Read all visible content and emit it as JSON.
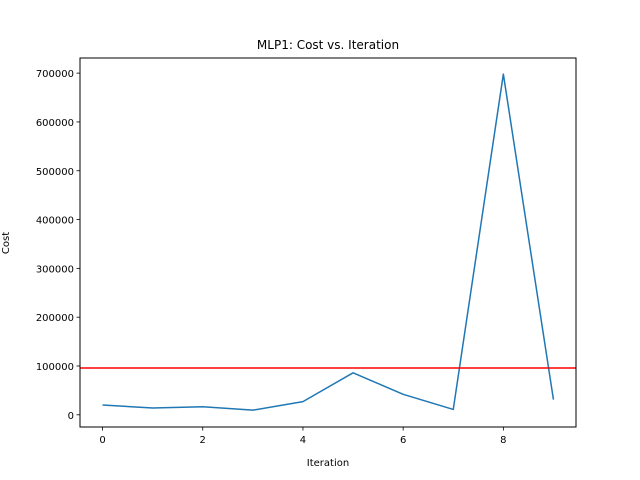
{
  "chart_data": {
    "type": "line",
    "title": "MLP1: Cost vs. Iteration",
    "xlabel": "Iteration",
    "ylabel": "Cost",
    "x": [
      0,
      1,
      2,
      3,
      4,
      5,
      6,
      7,
      8,
      9
    ],
    "series": [
      {
        "values": [
          20000,
          14000,
          16500,
          9500,
          27000,
          86000,
          42000,
          11000,
          698000,
          31000
        ],
        "color": "#1f77b4"
      }
    ],
    "reference_line": {
      "y": 96000,
      "color": "#ff0000"
    },
    "xlim": [
      -0.45,
      9.45
    ],
    "ylim": [
      -25000,
      731000
    ],
    "xticks": [
      0,
      2,
      4,
      6,
      8
    ],
    "xtick_labels": [
      "0",
      "2",
      "4",
      "6",
      "8"
    ],
    "yticks": [
      0,
      100000,
      200000,
      300000,
      400000,
      500000,
      600000,
      700000
    ],
    "ytick_labels": [
      "0",
      "100000",
      "200000",
      "300000",
      "400000",
      "500000",
      "600000",
      "700000"
    ],
    "grid": false,
    "legend": "none"
  }
}
